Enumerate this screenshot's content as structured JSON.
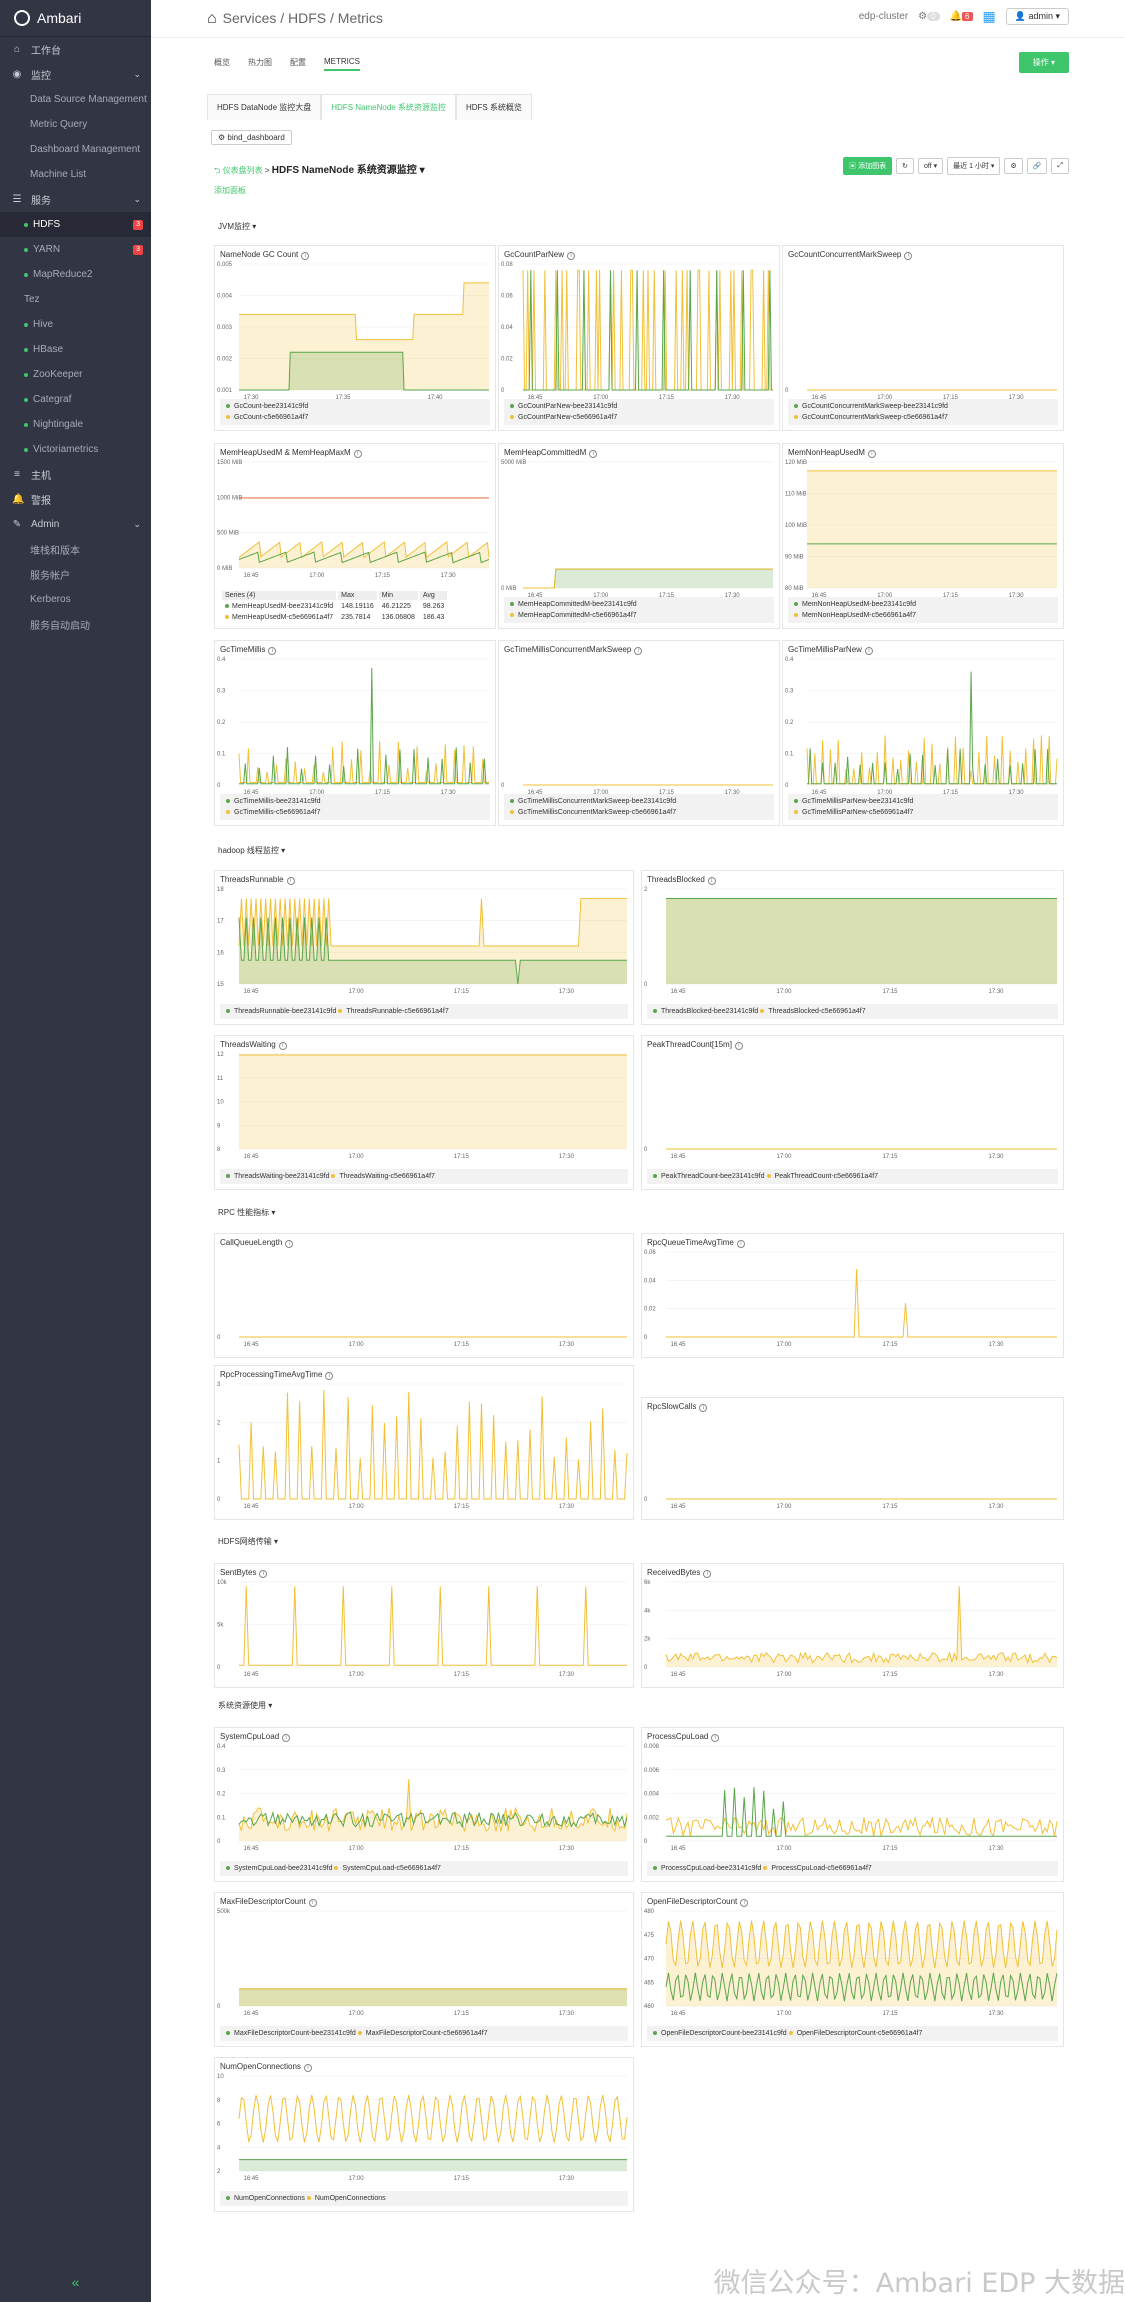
{
  "sidebar": {
    "brand": "Ambari",
    "items": [
      {
        "label": "工作台",
        "icon": "home-icon",
        "kind": "top"
      },
      {
        "label": "监控",
        "icon": "monitor-icon",
        "kind": "top",
        "chev": true
      },
      {
        "label": "Data Source Management",
        "kind": "sub"
      },
      {
        "label": "Metric Query",
        "kind": "sub"
      },
      {
        "label": "Dashboard Management",
        "kind": "sub"
      },
      {
        "label": "Machine List",
        "kind": "sub"
      },
      {
        "label": "服务",
        "icon": "services-icon",
        "kind": "top",
        "chev": true
      },
      {
        "label": "HDFS",
        "kind": "svc",
        "active": true,
        "badge": "3"
      },
      {
        "label": "YARN",
        "kind": "svc",
        "badge": "3"
      },
      {
        "label": "MapReduce2",
        "kind": "svc"
      },
      {
        "label": "Tez",
        "kind": "svc",
        "nodot": true
      },
      {
        "label": "Hive",
        "kind": "svc"
      },
      {
        "label": "HBase",
        "kind": "svc"
      },
      {
        "label": "ZooKeeper",
        "kind": "svc"
      },
      {
        "label": "Categraf",
        "kind": "svc"
      },
      {
        "label": "Nightingale",
        "kind": "svc"
      },
      {
        "label": "Victoriametrics",
        "kind": "svc"
      },
      {
        "label": "主机",
        "icon": "hosts-icon",
        "kind": "top"
      },
      {
        "label": "警报",
        "icon": "bell-icon",
        "kind": "top"
      },
      {
        "label": "Admin",
        "icon": "wrench-icon",
        "kind": "top",
        "chev": true
      },
      {
        "label": "堆栈和版本",
        "kind": "sub"
      },
      {
        "label": "服务帐户",
        "kind": "sub"
      },
      {
        "label": "Kerberos",
        "kind": "sub"
      },
      {
        "label": "服务自动启动",
        "kind": "sub"
      }
    ],
    "collapse": "«"
  },
  "topbar": {
    "crumb": "Services / HDFS / Metrics",
    "cluster": "edp-cluster",
    "ops_count": "0",
    "alerts_count": "6",
    "user": "admin"
  },
  "subtabs": [
    "概览",
    "热力图",
    "配置",
    "METRICS"
  ],
  "op_button": "操作",
  "dash_tabs": [
    "HDFS DataNode 监控大盘",
    "HDFS NameNode 系统资源监控",
    "HDFS 系统概览"
  ],
  "bind_button": "bind_dashboard",
  "dash": {
    "back": "仪表盘列表",
    "sep": ">",
    "title": "HDFS NameNode 系统资源监控",
    "add_chart": "添加图表",
    "refresh": "off",
    "range": "最近 1 小时",
    "add_panel": "添加面板"
  },
  "sections": [
    "JVM监控",
    "hadoop 线程监控",
    "RPC 性能指标",
    "HDFS网络传输",
    "系统资源使用"
  ],
  "colors": {
    "green": "#5aa64b",
    "yellow": "#f2c037",
    "red": "#e8743b",
    "accent": "#3fc66d"
  },
  "series_names": {
    "a": "bee23141c9fd",
    "b": "c5e66961a4f7"
  },
  "panels": [
    {
      "title": "NameNode GC Count",
      "legend": [
        "GcCount-bee23141c9fd",
        "GcCount-c5e66961a4f7"
      ],
      "yticks": [
        "0.005",
        "0.004",
        "0.003",
        "0.002",
        "0.001"
      ],
      "xticks": [
        "17:30",
        "17:35",
        "17:40"
      ]
    },
    {
      "title": "GcCountParNew",
      "legend": [
        "GcCountParNew-bee23141c9fd",
        "GcCountParNew-c5e66961a4f7"
      ],
      "yticks": [
        "0.08",
        "0.06",
        "0.04",
        "0.02",
        "0"
      ],
      "xticks": [
        "16:45",
        "17:00",
        "17:15",
        "17:30"
      ]
    },
    {
      "title": "GcCountConcurrentMarkSweep",
      "legend": [
        "GcCountConcurrentMarkSweep-bee23141c9fd",
        "GcCountConcurrentMarkSweep-c5e66961a4f7"
      ],
      "yticks": [
        "0"
      ],
      "xticks": [
        "16:45",
        "17:00",
        "17:15",
        "17:30"
      ]
    },
    {
      "title": "MemHeapUsedM & MemHeapMaxM",
      "yticks": [
        "1500 MiB",
        "1000 MiB",
        "500 MiB",
        "0 MiB"
      ],
      "xticks": [
        "16:45",
        "17:00",
        "17:15",
        "17:30"
      ],
      "table": {
        "head": [
          "Series (4)",
          "Max",
          "Min",
          "Avg"
        ],
        "rows": [
          [
            "MemHeapUsedM-bee23141c9fd",
            "148.19116",
            "46.21225",
            "98.263"
          ],
          [
            "MemHeapUsedM-c5e66961a4f7",
            "235.7814",
            "136.06808",
            "186.43"
          ]
        ]
      }
    },
    {
      "title": "MemHeapCommittedM",
      "legend": [
        "MemHeapCommittedM-bee23141c9fd",
        "MemHeapCommittedM-c5e66961a4f7"
      ],
      "yticks": [
        "5000 MiB",
        "0 MiB"
      ],
      "xticks": [
        "16:45",
        "17:00",
        "17:15",
        "17:30"
      ]
    },
    {
      "title": "MemNonHeapUsedM",
      "legend": [
        "MemNonHeapUsedM-bee23141c9fd",
        "MemNonHeapUsedM-c5e66961a4f7"
      ],
      "yticks": [
        "120 MiB",
        "110 MiB",
        "100 MiB",
        "90 MiB",
        "80 MiB"
      ],
      "xticks": [
        "16:45",
        "17:00",
        "17:15",
        "17:30"
      ]
    },
    {
      "title": "GcTimeMillis",
      "legend": [
        "GcTimeMillis-bee23141c9fd",
        "GcTimeMillis-c5e66961a4f7"
      ],
      "yticks": [
        "0.4",
        "0.3",
        "0.2",
        "0.1",
        "0"
      ],
      "xticks": [
        "16:45",
        "17:00",
        "17:15",
        "17:30"
      ]
    },
    {
      "title": "GcTimeMillisConcurrentMarkSweep",
      "legend": [
        "GcTimeMillisConcurrentMarkSweep-bee23141c9fd",
        "GcTimeMillisConcurrentMarkSweep-c5e66961a4f7"
      ],
      "yticks": [
        "0"
      ],
      "xticks": [
        "16:45",
        "17:00",
        "17:15",
        "17:30"
      ]
    },
    {
      "title": "GcTimeMillisParNew",
      "legend": [
        "GcTimeMillisParNew-bee23141c9fd",
        "GcTimeMillisParNew-c5e66961a4f7"
      ],
      "yticks": [
        "0.4",
        "0.3",
        "0.2",
        "0.1",
        "0"
      ],
      "xticks": [
        "16:45",
        "17:00",
        "17:15",
        "17:30"
      ]
    },
    {
      "title": "ThreadsRunnable",
      "legend": [
        "ThreadsRunnable-bee23141c9fd",
        "ThreadsRunnable-c5e66961a4f7"
      ],
      "yticks": [
        "18",
        "17",
        "16",
        "15"
      ],
      "xticks": [
        "16:45",
        "17:00",
        "17:15",
        "17:30"
      ]
    },
    {
      "title": "ThreadsBlocked",
      "legend": [
        "ThreadsBlocked-bee23141c9fd",
        "ThreadsBlocked-c5e66961a4f7"
      ],
      "yticks": [
        "2",
        "0"
      ],
      "xticks": [
        "16:45",
        "17:00",
        "17:15",
        "17:30"
      ]
    },
    {
      "title": "ThreadsWaiting",
      "legend": [
        "ThreadsWaiting-bee23141c9fd",
        "ThreadsWaiting-c5e66961a4f7"
      ],
      "yticks": [
        "12",
        "11",
        "10",
        "9",
        "8"
      ],
      "xticks": [
        "16:45",
        "17:00",
        "17:15",
        "17:30"
      ]
    },
    {
      "title": "PeakThreadCount[15m]",
      "legend": [
        "PeakThreadCount-bee23141c9fd",
        "PeakThreadCount-c5e66961a4f7"
      ],
      "yticks": [
        "0"
      ],
      "xticks": [
        "16:45",
        "17:00",
        "17:15",
        "17:30"
      ]
    },
    {
      "title": "CallQueueLength",
      "yticks": [
        "0"
      ],
      "xticks": [
        "16:45",
        "17:00",
        "17:15",
        "17:30"
      ]
    },
    {
      "title": "RpcQueueTimeAvgTime",
      "yticks": [
        "0.06",
        "0.04",
        "0.02",
        "0"
      ],
      "xticks": [
        "16:45",
        "17:00",
        "17:15",
        "17:30"
      ]
    },
    {
      "title": "RpcProcessingTimeAvgTime",
      "yticks": [
        "3",
        "2",
        "1",
        "0"
      ],
      "xticks": [
        "16:45",
        "17:00",
        "17:15",
        "17:30"
      ]
    },
    {
      "title": "RpcSlowCalls",
      "yticks": [
        "0"
      ],
      "xticks": [
        "16:45",
        "17:00",
        "17:15",
        "17:30"
      ]
    },
    {
      "title": "SentBytes",
      "yticks": [
        "10k",
        "5k",
        "0"
      ],
      "xticks": [
        "16:45",
        "17:00",
        "17:15",
        "17:30"
      ]
    },
    {
      "title": "ReceivedBytes",
      "yticks": [
        "6k",
        "4k",
        "2k",
        "0"
      ],
      "xticks": [
        "16:45",
        "17:00",
        "17:15",
        "17:30"
      ]
    },
    {
      "title": "SystemCpuLoad",
      "legend": [
        "SystemCpuLoad-bee23141c9fd",
        "SystemCpuLoad-c5e66961a4f7"
      ],
      "yticks": [
        "0.4",
        "0.3",
        "0.2",
        "0.1",
        "0"
      ],
      "xticks": [
        "16:45",
        "17:00",
        "17:15",
        "17:30"
      ]
    },
    {
      "title": "ProcessCpuLoad",
      "legend": [
        "ProcessCpuLoad-bee23141c9fd",
        "ProcessCpuLoad-c5e66961a4f7"
      ],
      "yticks": [
        "0.008",
        "0.006",
        "0.004",
        "0.002",
        "0"
      ],
      "xticks": [
        "16:45",
        "17:00",
        "17:15",
        "17:30"
      ]
    },
    {
      "title": "MaxFileDescriptorCount",
      "legend": [
        "MaxFileDescriptorCount-bee23141c9fd",
        "MaxFileDescriptorCount-c5e66961a4f7"
      ],
      "yticks": [
        "500k",
        "0"
      ],
      "xticks": [
        "16:45",
        "17:00",
        "17:15",
        "17:30"
      ]
    },
    {
      "title": "OpenFileDescriptorCount",
      "legend": [
        "OpenFileDescriptorCount-bee23141c9fd",
        "OpenFileDescriptorCount-c5e66961a4f7"
      ],
      "yticks": [
        "480",
        "475",
        "470",
        "465",
        "460"
      ],
      "xticks": [
        "16:45",
        "17:00",
        "17:15",
        "17:30"
      ]
    },
    {
      "title": "NumOpenConnections",
      "legend": [
        "NumOpenConnections",
        "NumOpenConnections"
      ],
      "yticks": [
        "10",
        "8",
        "6",
        "4",
        "2"
      ],
      "xticks": [
        "16:45",
        "17:00",
        "17:15",
        "17:30"
      ]
    }
  ],
  "watermark": "微信公众号：Ambari EDP 大数据"
}
